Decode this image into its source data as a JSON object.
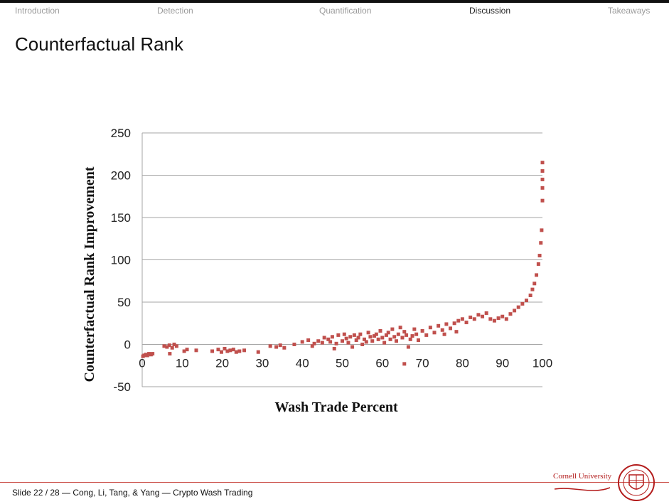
{
  "nav": {
    "items": [
      "Introduction",
      "Detection",
      "Quantification",
      "Discussion",
      "Takeaways"
    ],
    "active": "Discussion"
  },
  "slide_title": "Counterfactual Rank",
  "footer": {
    "text": "Slide 22 / 28  —  Cong, Li, Tang, & Yang  —  Crypto Wash Trading",
    "logo_text": "Cornell University"
  },
  "colors": {
    "accent": "#c9453e",
    "points": "#c0504d",
    "grid": "#a6a6a6"
  },
  "chart_data": {
    "type": "scatter",
    "title": "",
    "xlabel": "Wash Trade Percent",
    "ylabel": "Counterfactual Rank Improvement",
    "xlim": [
      0,
      100
    ],
    "ylim": [
      -50,
      250
    ],
    "xticks": [
      0,
      10,
      20,
      30,
      40,
      50,
      60,
      70,
      80,
      90,
      100
    ],
    "yticks": [
      -50,
      0,
      50,
      100,
      150,
      200,
      250
    ],
    "grid": true,
    "legend": false,
    "series": [
      {
        "points": [
          [
            0.2,
            -14
          ],
          [
            0.5,
            -13
          ],
          [
            0.9,
            -12
          ],
          [
            1.3,
            -13
          ],
          [
            1.7,
            -11
          ],
          [
            2.2,
            -12
          ],
          [
            2.6,
            -11
          ],
          [
            5.5,
            -2
          ],
          [
            6.2,
            -3
          ],
          [
            6.8,
            -1
          ],
          [
            7.5,
            -4
          ],
          [
            8.0,
            0
          ],
          [
            8.6,
            -2
          ],
          [
            6.9,
            -11
          ],
          [
            10.5,
            -8
          ],
          [
            11.2,
            -6
          ],
          [
            13.5,
            -7
          ],
          [
            17.5,
            -8
          ],
          [
            19.0,
            -6
          ],
          [
            19.8,
            -9
          ],
          [
            20.6,
            -5
          ],
          [
            21.3,
            -8
          ],
          [
            22.0,
            -7
          ],
          [
            22.8,
            -6
          ],
          [
            23.5,
            -9
          ],
          [
            24.3,
            -8
          ],
          [
            25.5,
            -7
          ],
          [
            29.0,
            -9
          ],
          [
            32.0,
            -2
          ],
          [
            33.5,
            -3
          ],
          [
            34.5,
            -1
          ],
          [
            35.5,
            -4
          ],
          [
            38.0,
            0
          ],
          [
            40.0,
            3
          ],
          [
            41.5,
            5
          ],
          [
            42.5,
            -2
          ],
          [
            43.0,
            1
          ],
          [
            44.0,
            4
          ],
          [
            45.0,
            2
          ],
          [
            45.5,
            8
          ],
          [
            46.5,
            6
          ],
          [
            47.0,
            3
          ],
          [
            47.5,
            9
          ],
          [
            48.0,
            -5
          ],
          [
            48.5,
            1
          ],
          [
            49.0,
            11
          ],
          [
            50.0,
            4
          ],
          [
            50.5,
            12
          ],
          [
            51.0,
            7
          ],
          [
            51.5,
            2
          ],
          [
            52.0,
            9
          ],
          [
            52.5,
            -3
          ],
          [
            53.0,
            11
          ],
          [
            53.5,
            5
          ],
          [
            54.0,
            8
          ],
          [
            54.5,
            12
          ],
          [
            55.0,
            0
          ],
          [
            55.5,
            6
          ],
          [
            56.0,
            3
          ],
          [
            56.5,
            14
          ],
          [
            57.0,
            9
          ],
          [
            57.5,
            4
          ],
          [
            58.0,
            10
          ],
          [
            58.5,
            12
          ],
          [
            59.0,
            6
          ],
          [
            59.5,
            16
          ],
          [
            60.0,
            8
          ],
          [
            60.5,
            2
          ],
          [
            61.0,
            11
          ],
          [
            61.5,
            14
          ],
          [
            62.0,
            6
          ],
          [
            62.5,
            18
          ],
          [
            63.0,
            9
          ],
          [
            63.5,
            4
          ],
          [
            64.0,
            12
          ],
          [
            64.5,
            20
          ],
          [
            65.0,
            8
          ],
          [
            65.5,
            15
          ],
          [
            66.0,
            11
          ],
          [
            66.5,
            -3
          ],
          [
            67.0,
            6
          ],
          [
            67.5,
            10
          ],
          [
            68.0,
            18
          ],
          [
            68.5,
            12
          ],
          [
            69.0,
            5
          ],
          [
            70.0,
            16
          ],
          [
            71.0,
            11
          ],
          [
            72.0,
            20
          ],
          [
            73.0,
            14
          ],
          [
            74.0,
            22
          ],
          [
            75.0,
            17
          ],
          [
            75.5,
            12
          ],
          [
            76.0,
            24
          ],
          [
            77.0,
            19
          ],
          [
            78.0,
            25
          ],
          [
            78.5,
            15
          ],
          [
            79.0,
            28
          ],
          [
            80.0,
            30
          ],
          [
            81.0,
            26
          ],
          [
            82.0,
            32
          ],
          [
            83.0,
            30
          ],
          [
            84.0,
            35
          ],
          [
            85.0,
            33
          ],
          [
            86.0,
            37
          ],
          [
            87.0,
            30
          ],
          [
            88.0,
            28
          ],
          [
            89.0,
            31
          ],
          [
            90.0,
            33
          ],
          [
            91.0,
            30
          ],
          [
            92.0,
            36
          ],
          [
            93.0,
            40
          ],
          [
            94.0,
            44
          ],
          [
            95.0,
            48
          ],
          [
            96.0,
            52
          ],
          [
            97.0,
            58
          ],
          [
            97.5,
            65
          ],
          [
            98.0,
            72
          ],
          [
            98.5,
            82
          ],
          [
            99.0,
            95
          ],
          [
            99.3,
            105
          ],
          [
            99.6,
            120
          ],
          [
            99.8,
            135
          ],
          [
            100.0,
            170
          ],
          [
            100.0,
            185
          ],
          [
            100.0,
            195
          ],
          [
            100.0,
            205
          ],
          [
            100.0,
            215
          ],
          [
            65.5,
            -23
          ]
        ]
      }
    ]
  }
}
